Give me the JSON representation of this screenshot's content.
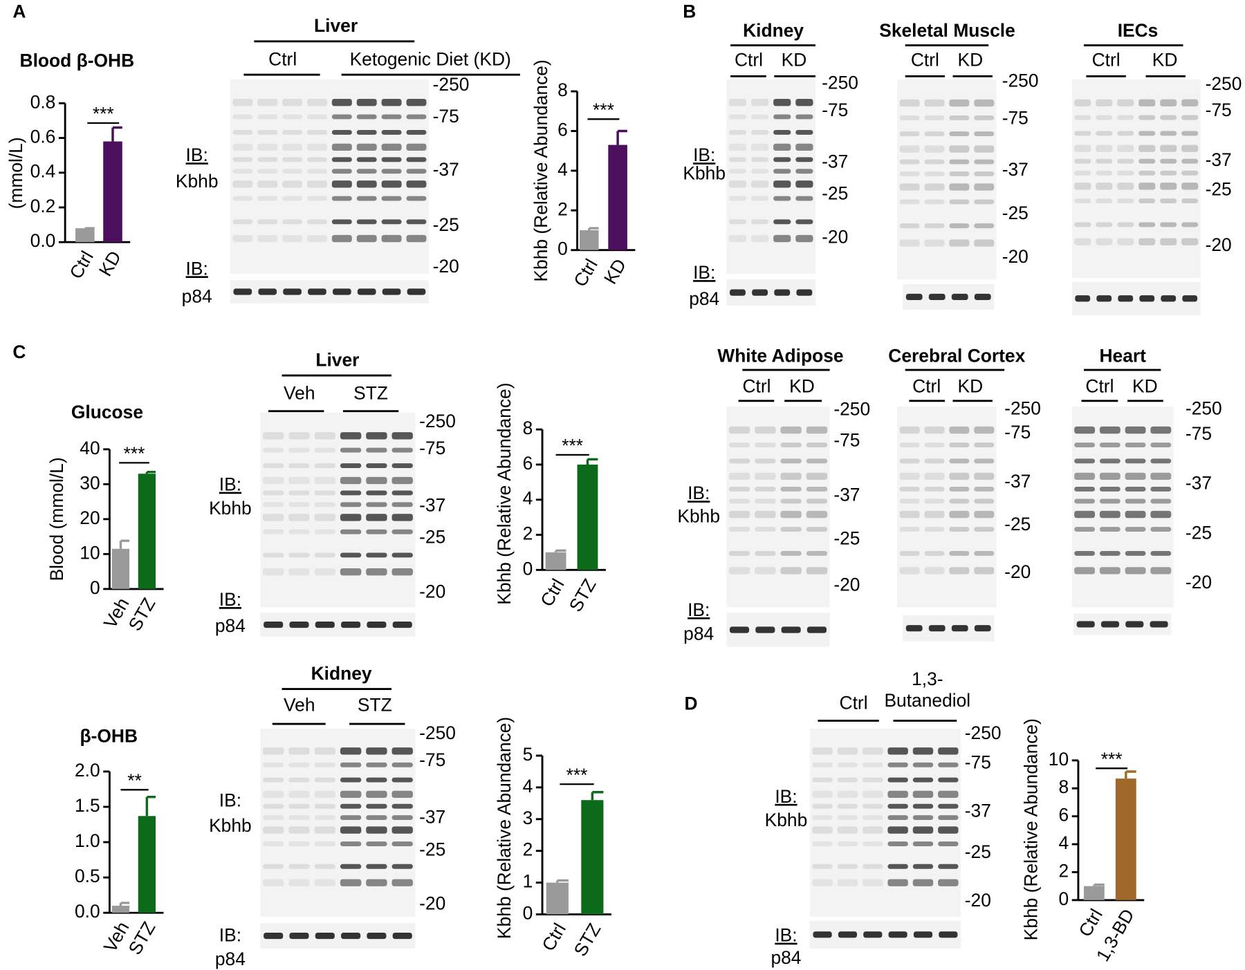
{
  "panel_labels": [
    "A",
    "B",
    "C",
    "D"
  ],
  "chart_data": [
    {
      "type": "bar",
      "title": "Blood β-OHB",
      "y_label": "(mmol/L)",
      "categories": [
        "Ctrl",
        "KD"
      ],
      "values": [
        0.08,
        0.58
      ],
      "errors": [
        0,
        0.08
      ],
      "colors": [
        "#9a9a9a",
        "#4b0f5e"
      ],
      "ylim": [
        0,
        0.8
      ],
      "yticks": [
        {
          "value": 0,
          "label": "0.0"
        },
        0.2,
        0.4,
        0.6,
        0.8
      ],
      "significance": "***"
    },
    {
      "type": "bar",
      "y_label": "Kbhb (Relative Abundance)",
      "categories": [
        "Ctrl",
        "KD"
      ],
      "values": [
        1.0,
        5.3
      ],
      "errors": [
        0.1,
        0.7
      ],
      "colors": [
        "#9a9a9a",
        "#4b0f5e"
      ],
      "ylim": [
        0,
        8
      ],
      "yticks": [
        0,
        2,
        4,
        6,
        8
      ],
      "significance": "***"
    },
    {
      "type": "bar",
      "title": "Glucose",
      "y_label": "Blood (mmol/L)",
      "categories": [
        "Veh",
        "STZ"
      ],
      "values": [
        11.5,
        33
      ],
      "errors": [
        2.3,
        0.5
      ],
      "colors": [
        "#9a9a9a",
        "#0b6b1a"
      ],
      "ylim": [
        0,
        40
      ],
      "yticks": [
        0,
        10,
        20,
        30,
        40
      ],
      "significance": "***"
    },
    {
      "type": "bar",
      "y_label": "Kbhb (Relative Abundance)",
      "categories": [
        "Ctrl",
        "STZ"
      ],
      "values": [
        1.0,
        6.0
      ],
      "errors": [
        0.1,
        0.3
      ],
      "colors": [
        "#9a9a9a",
        "#0b6b1a"
      ],
      "ylim": [
        0,
        8
      ],
      "yticks": [
        0,
        2,
        4,
        6,
        8
      ],
      "significance": "***"
    },
    {
      "type": "bar",
      "title": "β-OHB",
      "categories": [
        "Veh",
        "STZ"
      ],
      "values": [
        0.1,
        1.37
      ],
      "errors": [
        0.04,
        0.27
      ],
      "colors": [
        "#9a9a9a",
        "#0b6b1a"
      ],
      "ylim": [
        0,
        2
      ],
      "yticks": [
        {
          "value": 0,
          "label": "0.0"
        },
        0.5,
        {
          "value": 1,
          "label": "1.0"
        },
        1.5,
        {
          "value": 2,
          "label": "2.0"
        }
      ],
      "significance": "**"
    },
    {
      "type": "bar",
      "y_label": "Kbhb (Relative Abundance)",
      "categories": [
        "Ctrl",
        "STZ"
      ],
      "values": [
        1.0,
        3.6
      ],
      "errors": [
        0.07,
        0.25
      ],
      "colors": [
        "#9a9a9a",
        "#0b6b1a"
      ],
      "ylim": [
        0,
        5
      ],
      "yticks": [
        0,
        1,
        2,
        3,
        4,
        5
      ],
      "significance": "***"
    },
    {
      "type": "bar",
      "y_label": "Kbhb (Relative Abundance)",
      "categories": [
        "Ctrl",
        "1,3-BD"
      ],
      "values": [
        1.0,
        8.7
      ],
      "errors": [
        0.1,
        0.5
      ],
      "colors": [
        "#9a9a9a",
        "#a0692a"
      ],
      "ylim": [
        0,
        10
      ],
      "yticks": [
        0,
        2,
        4,
        6,
        8,
        10
      ],
      "significance": "***"
    }
  ],
  "blots": [
    {
      "title": "Liver",
      "groups": [
        "Ctrl",
        "Ketogenic Diet (KD)"
      ],
      "markers": [
        "-250",
        "-75",
        "-37",
        "-25",
        "-20"
      ],
      "ib_labels": [
        "IB:",
        "Kbhb",
        "IB:",
        "p84"
      ]
    },
    {
      "title": "Kidney",
      "groups": [
        "Ctrl",
        "KD"
      ],
      "markers": [
        "-250",
        "-75",
        "-37",
        "-25",
        "-20"
      ],
      "ib_labels": [
        "IB:",
        "Kbhb",
        "IB:",
        "p84"
      ]
    },
    {
      "title": "Skeletal Muscle",
      "groups": [
        "Ctrl",
        "KD"
      ],
      "markers": [
        "-250",
        "-75",
        "-37",
        "-25",
        "-20"
      ]
    },
    {
      "title": "IECs",
      "groups": [
        "Ctrl",
        "KD"
      ],
      "markers": [
        "-250",
        "-75",
        "-37",
        "-25",
        "-20"
      ]
    },
    {
      "title": "White Adipose",
      "groups": [
        "Ctrl",
        "KD"
      ],
      "markers": [
        "-250",
        "-75",
        "-37",
        "-25",
        "-20"
      ],
      "ib_labels": [
        "IB:",
        "Kbhb",
        "IB:",
        "p84"
      ]
    },
    {
      "title": "Cerebral Cortex",
      "groups": [
        "Ctrl",
        "KD"
      ],
      "markers": [
        "-250",
        "-75",
        "-37",
        "-25",
        "-20"
      ]
    },
    {
      "title": "Heart",
      "groups": [
        "Ctrl",
        "KD"
      ],
      "markers": [
        "-250",
        "-75",
        "-37",
        "-25",
        "-20"
      ]
    },
    {
      "title": "Liver",
      "groups": [
        "Veh",
        "STZ"
      ],
      "markers": [
        "-250",
        "-75",
        "-37",
        "-25",
        "-20"
      ],
      "ib_labels": [
        "IB:",
        "Kbhb",
        "IB:",
        "p84"
      ]
    },
    {
      "title": "Kidney",
      "groups": [
        "Veh",
        "STZ"
      ],
      "markers": [
        "-250",
        "-75",
        "-37",
        "-25",
        "-20"
      ],
      "ib_labels": [
        "IB:",
        "Kbhb",
        "IB:",
        "p84"
      ]
    },
    {
      "groups": [
        "Ctrl",
        [
          "1,3-",
          "Butanediol"
        ]
      ],
      "markers": [
        "-250",
        "-75",
        "-37",
        "-25",
        "-20"
      ],
      "ib_labels": [
        "IB:",
        "Kbhb",
        "IB:",
        "p84"
      ]
    }
  ]
}
